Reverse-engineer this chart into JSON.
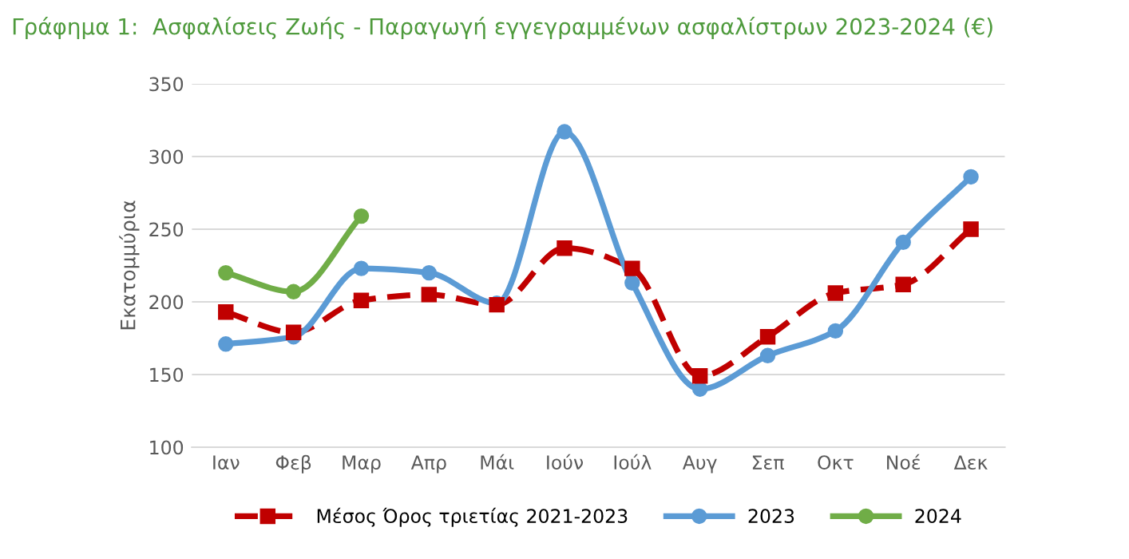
{
  "chart_data": {
    "type": "line",
    "title": "Γράφημα 1:  Ασφαλίσεις Ζωής - Παραγωγή εγγεγραμμένων ασφαλίστρων 2023-2024 (€)",
    "ylabel": "Εκατομμύρια",
    "categories": [
      "Ιαν",
      "Φεβ",
      "Μαρ",
      "Απρ",
      "Μάι",
      "Ιούν",
      "Ιούλ",
      "Αυγ",
      "Σεπ",
      "Οκτ",
      "Νοέ",
      "Δεκ"
    ],
    "series": [
      {
        "name": "Μέσος Όρος τριετίας 2021-2023",
        "color": "#c00000",
        "marker": "square",
        "line_style": "dashed",
        "values": [
          193,
          179,
          201,
          205,
          198,
          237,
          223,
          149,
          176,
          206,
          212,
          250
        ]
      },
      {
        "name": "2023",
        "color": "#5b9bd5",
        "marker": "circle",
        "line_style": "solid",
        "values": [
          171,
          176,
          223,
          220,
          199,
          317,
          213,
          140,
          163,
          180,
          241,
          286
        ]
      },
      {
        "name": "2024",
        "color": "#70ad47",
        "marker": "circle",
        "line_style": "solid",
        "values": [
          220,
          207,
          259,
          null,
          null,
          null,
          null,
          null,
          null,
          null,
          null,
          null
        ]
      }
    ],
    "ylim": [
      100,
      350
    ],
    "yticks": [
      100,
      150,
      200,
      250,
      300,
      350
    ],
    "grid": "y",
    "legend": "bottom"
  }
}
